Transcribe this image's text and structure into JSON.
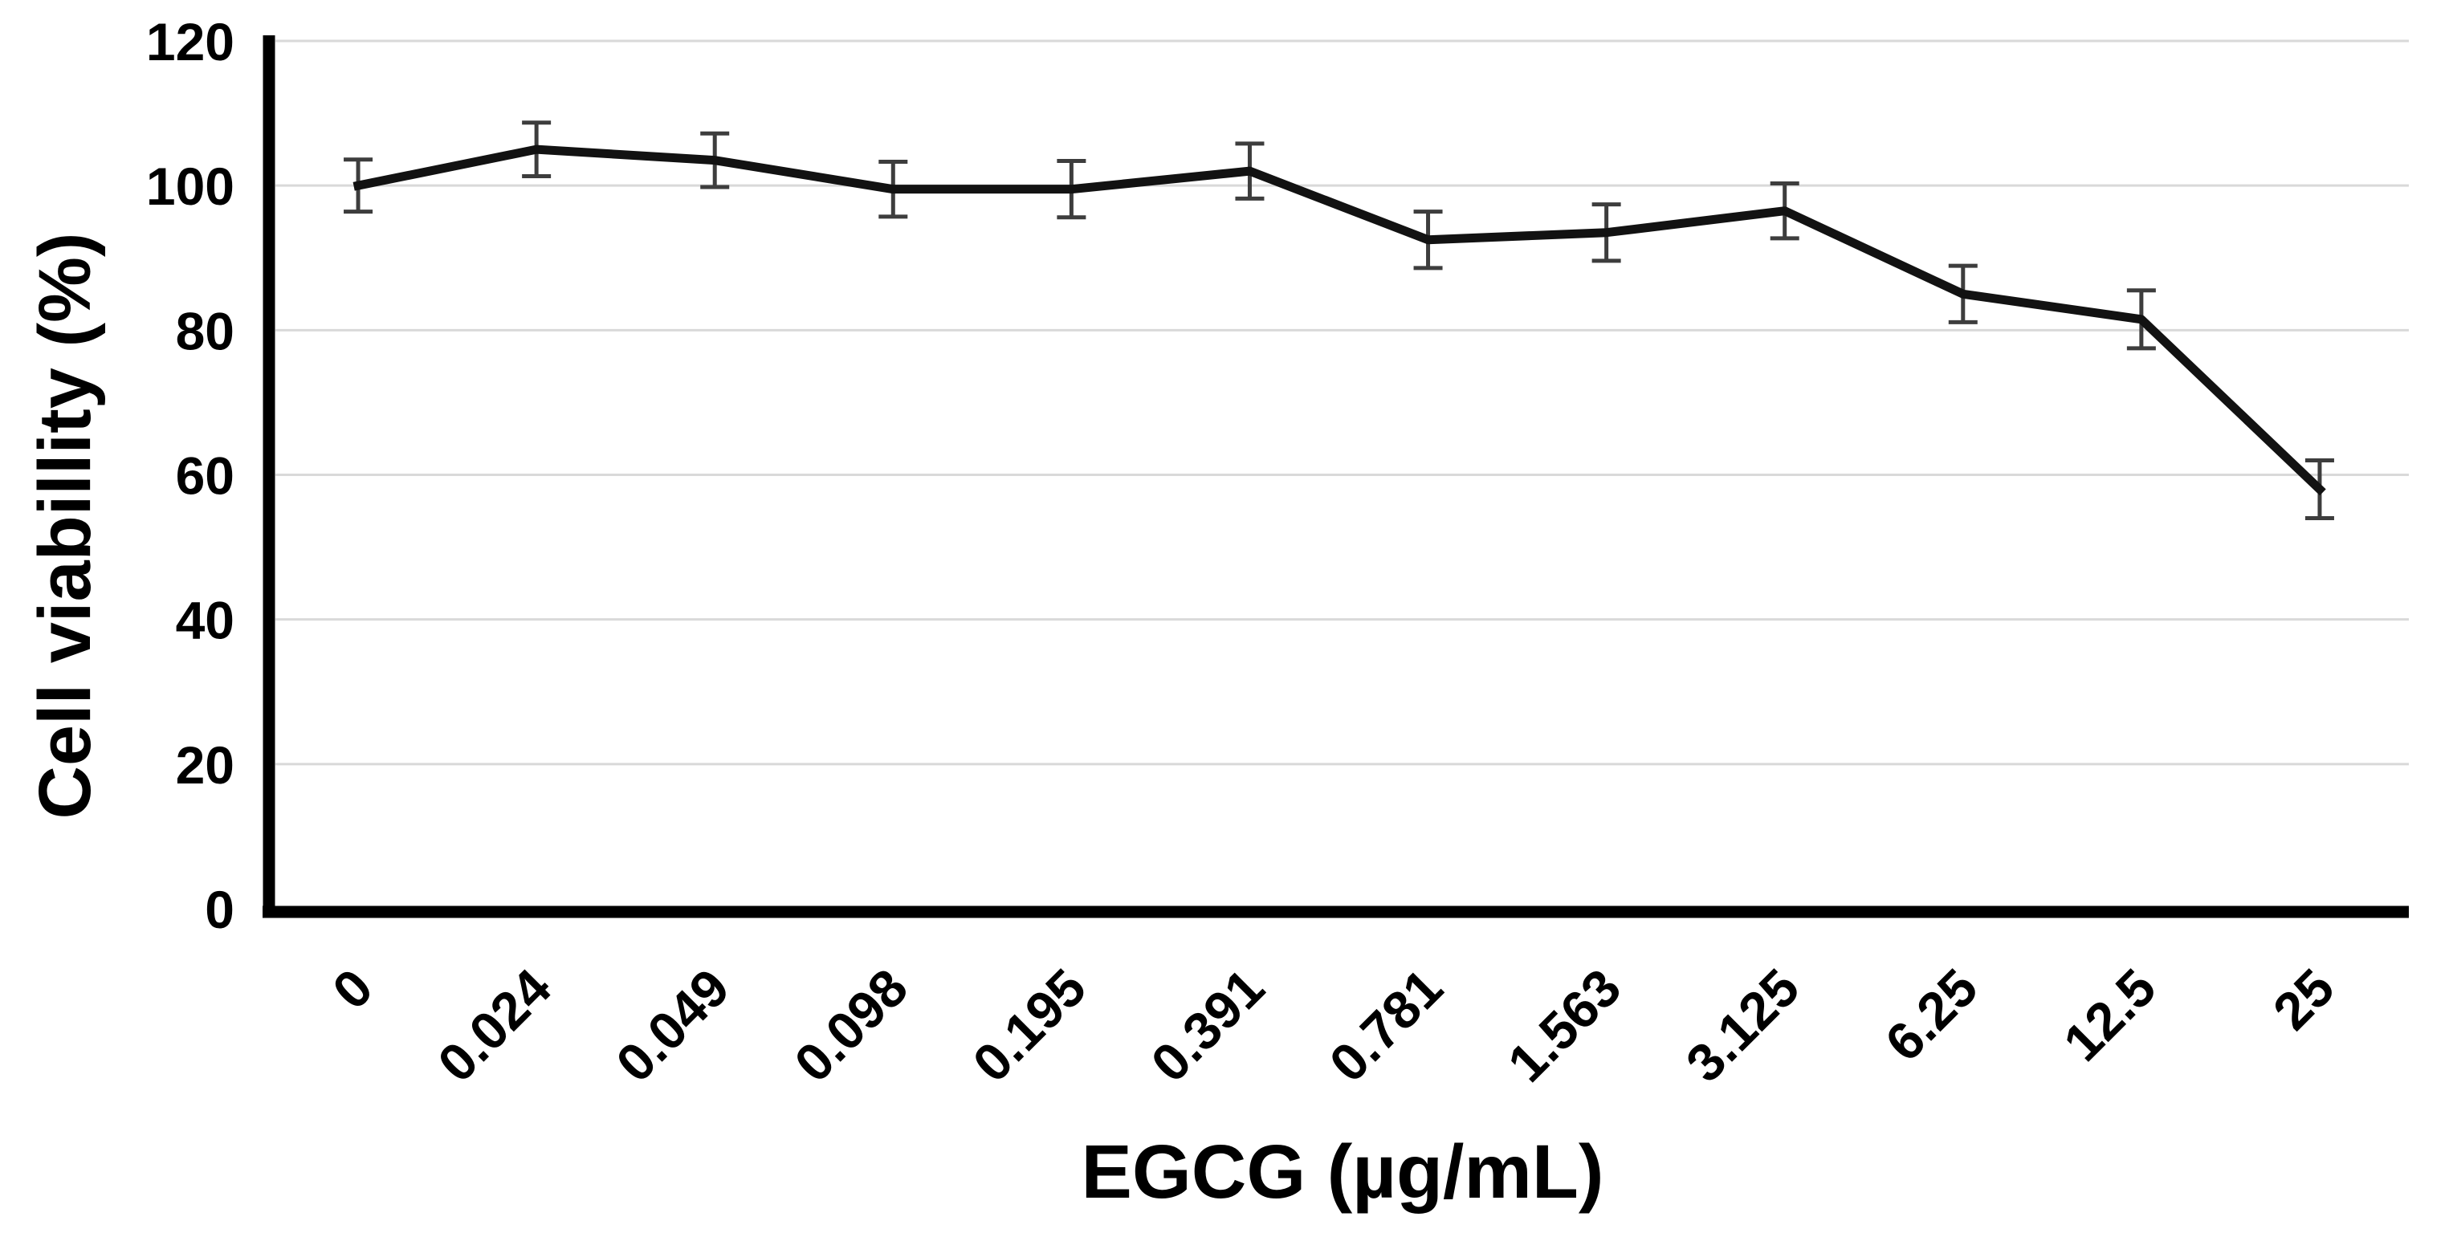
{
  "chart_data": {
    "type": "line",
    "title": "",
    "xlabel": "EGCG (µg/mL)",
    "ylabel": "Cell viabillity (%)",
    "categories": [
      "0",
      "0.024",
      "0.049",
      "0.098",
      "0.195",
      "0.391",
      "0.781",
      "1.563",
      "3.125",
      "6.25",
      "12.5",
      "25"
    ],
    "series": [
      {
        "name": "Cell viability",
        "values": [
          100,
          105,
          103.5,
          99.5,
          99.5,
          102,
          92.5,
          93.5,
          96.5,
          85,
          81.5,
          58
        ],
        "errors": [
          3.6,
          3.7,
          3.7,
          3.8,
          3.9,
          3.8,
          3.9,
          3.9,
          3.8,
          3.9,
          4.0,
          4.0
        ]
      }
    ],
    "ylim": [
      0,
      120
    ],
    "yticks": [
      0,
      20,
      40,
      60,
      80,
      100,
      120
    ],
    "grid": "horizontal",
    "legend": "none",
    "error_bars": "vertical-with-caps",
    "colors": {
      "line": "#121212",
      "error_bar": "#3d3d3d",
      "gridline": "#d9d9d9",
      "axis": "#000000",
      "text": "#000000",
      "background": "#ffffff"
    }
  }
}
